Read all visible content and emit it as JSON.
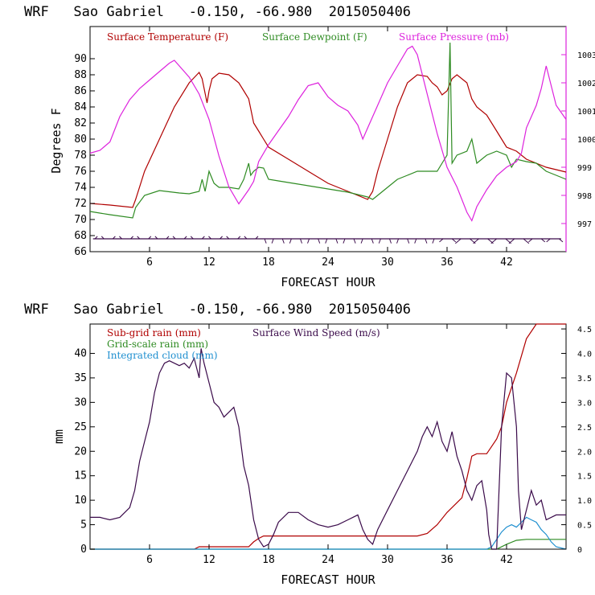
{
  "chart_data": [
    {
      "type": "line",
      "title": "WRF   Sao Gabriel   -0.150, -66.980  2015050406",
      "xlabel": "FORECAST HOUR",
      "ylabel": "Degrees F",
      "xlim": [
        0,
        48
      ],
      "ylim": [
        66,
        94
      ],
      "y2lim": [
        996,
        1004
      ],
      "x_ticks": [
        6,
        12,
        18,
        24,
        30,
        36,
        42
      ],
      "y_ticks": [
        66,
        68,
        70,
        72,
        74,
        76,
        78,
        80,
        82,
        84,
        86,
        88,
        90
      ],
      "y2_ticks": [
        997,
        998,
        999,
        1000,
        1001,
        1002,
        1003
      ],
      "series": [
        {
          "name": "Surface Temperature (F)",
          "color": "#b00000",
          "axis": "left",
          "x": [
            0,
            2,
            4.3,
            4.6,
            5.5,
            7,
            8.5,
            10,
            11,
            11.3,
            11.8,
            12,
            12.3,
            13,
            14,
            15,
            15.5,
            16,
            16.5,
            17,
            17.5,
            18,
            20,
            22,
            24,
            26,
            28,
            28.5,
            29,
            30,
            31,
            32,
            33,
            34,
            34.5,
            35,
            35.5,
            36,
            36.5,
            37,
            38,
            38.5,
            39,
            40,
            41,
            42,
            43,
            44,
            45,
            46,
            47,
            48
          ],
          "y": [
            72,
            71.8,
            71.5,
            72.5,
            76,
            80,
            84,
            87,
            88.3,
            87.5,
            84.5,
            86,
            87.5,
            88.2,
            88,
            87,
            86,
            85,
            82,
            81,
            80,
            79,
            77.5,
            76,
            74.5,
            73.5,
            72.5,
            73.5,
            76,
            80,
            84,
            87,
            88,
            87.8,
            87,
            86.5,
            85.5,
            86,
            87.5,
            88,
            87,
            85,
            84,
            83,
            81,
            79,
            78.5,
            77.5,
            77,
            76.5,
            76.2,
            75.9
          ]
        },
        {
          "name": "Surface Dewpoint (F)",
          "color": "#2e8b22",
          "axis": "left",
          "x": [
            0,
            2,
            4.3,
            4.6,
            5.5,
            7,
            9,
            10,
            11,
            11.3,
            11.6,
            12,
            12.5,
            13,
            14,
            15,
            15.5,
            16,
            16.2,
            16.5,
            17,
            17.5,
            18,
            19,
            20,
            22,
            24,
            26,
            28,
            28.5,
            29,
            30,
            31,
            32,
            33,
            34,
            35,
            35.5,
            36,
            36.3,
            36.5,
            37,
            38,
            38.5,
            39,
            40,
            41,
            42,
            42.5,
            43,
            44,
            45,
            46,
            47,
            48
          ],
          "y": [
            71,
            70.6,
            70.2,
            71.5,
            73,
            73.6,
            73.3,
            73.2,
            73.5,
            75,
            73.5,
            76,
            74.5,
            74,
            74,
            73.8,
            75,
            77,
            75.5,
            76,
            76.5,
            76.4,
            75,
            74.8,
            74.6,
            74.2,
            73.8,
            73.4,
            72.8,
            72.5,
            73,
            74,
            75,
            75.5,
            76,
            76,
            76,
            77,
            78,
            92,
            77,
            78,
            78.5,
            80,
            77,
            78,
            78.5,
            78,
            76.5,
            77.5,
            77.2,
            77,
            76,
            75.5,
            75
          ]
        },
        {
          "name": "Surface Pressure (mb)",
          "color": "#dd22dd",
          "axis": "right",
          "x": [
            0,
            1,
            2,
            3,
            4,
            5,
            6,
            7,
            8,
            8.5,
            9,
            10,
            11,
            12,
            13,
            14,
            15,
            16,
            16.5,
            17,
            18,
            19,
            20,
            21,
            22,
            23,
            24,
            25,
            26,
            27,
            27.5,
            28,
            29,
            30,
            31,
            32,
            32.5,
            33,
            34,
            35,
            36,
            37,
            38,
            38.5,
            39,
            40,
            41,
            42,
            43,
            43.5,
            44,
            45,
            45.5,
            46,
            47,
            48
          ],
          "y": [
            999.5,
            999.6,
            999.9,
            1000.8,
            1001.4,
            1001.8,
            1002.1,
            1002.4,
            1002.7,
            1002.8,
            1002.6,
            1002.2,
            1001.6,
            1000.7,
            999.4,
            998.3,
            997.7,
            998.2,
            998.5,
            999.2,
            999.8,
            1000.3,
            1000.8,
            1001.4,
            1001.9,
            1002.0,
            1001.5,
            1001.2,
            1001.0,
            1000.5,
            1000.0,
            1000.4,
            1001.2,
            1002.0,
            1002.6,
            1003.2,
            1003.3,
            1003.0,
            1001.6,
            1000.2,
            999.0,
            998.3,
            997.4,
            997.1,
            997.6,
            998.2,
            998.7,
            999.0,
            999.2,
            999.5,
            1000.4,
            1001.2,
            1001.8,
            1002.6,
            1001.2,
            1000.7
          ]
        }
      ],
      "wind_barbs_row_y": 67.6
    },
    {
      "type": "line",
      "title": "WRF   Sao Gabriel   -0.150, -66.980  2015050406",
      "xlabel": "FORECAST HOUR",
      "ylabel": "mm",
      "xlim": [
        0,
        48
      ],
      "ylim": [
        0,
        46
      ],
      "y2lim": [
        0,
        4.6
      ],
      "x_ticks": [
        6,
        12,
        18,
        24,
        30,
        36,
        42
      ],
      "y_ticks": [
        0,
        5,
        10,
        15,
        20,
        25,
        30,
        35,
        40
      ],
      "y2_ticks": [
        0,
        0.5,
        1.0,
        1.5,
        2.0,
        2.5,
        3.0,
        3.5,
        4.0,
        4.5
      ],
      "y2_tick_labels": [
        "0",
        "0.5",
        "1.0",
        "1.5",
        "2.0",
        "2.5",
        "3.0",
        "3.5",
        "4.0",
        "4.5"
      ],
      "series": [
        {
          "name": "Sub-grid rain (mm)",
          "color": "#b00000",
          "axis": "left",
          "x": [
            0,
            10.5,
            11,
            16,
            16.5,
            17,
            17.5,
            33,
            34,
            35,
            36,
            37,
            37.5,
            38,
            38.5,
            39,
            40,
            40.5,
            41,
            41.5,
            42,
            43,
            44,
            45,
            46,
            47,
            48
          ],
          "y": [
            0,
            0,
            0.5,
            0.5,
            1.5,
            2.2,
            2.7,
            2.7,
            3.2,
            5,
            7.5,
            9.5,
            10.5,
            14.5,
            19,
            19.5,
            19.5,
            21,
            22.5,
            25,
            30,
            36,
            43,
            46,
            46,
            46,
            46
          ]
        },
        {
          "name": "Grid-scale rain (mm)",
          "color": "#2e8b22",
          "axis": "left",
          "x": [
            0,
            41,
            42,
            43,
            44,
            48
          ],
          "y": [
            0,
            0,
            1.0,
            1.8,
            2.0,
            2.0
          ]
        },
        {
          "name": "Integrated cloud (mm)",
          "color": "#2090d0",
          "axis": "left",
          "x": [
            0,
            40,
            40.5,
            41,
            41.5,
            42,
            42.5,
            43,
            43.5,
            44,
            44.5,
            45,
            45.5,
            46,
            46.5,
            47,
            48
          ],
          "y": [
            0,
            0,
            0.5,
            2,
            3.5,
            4.5,
            5,
            4.5,
            5.5,
            6.5,
            6,
            5.5,
            4,
            3,
            1.5,
            0.5,
            0
          ]
        },
        {
          "name": "Surface Wind Speed (m/s)",
          "color": "#3a0a4a",
          "axis": "right",
          "x": [
            0,
            1,
            2,
            3,
            4,
            4.5,
            5,
            5.5,
            6,
            6.5,
            7,
            7.5,
            8,
            8.5,
            9,
            9.5,
            10,
            10.5,
            11,
            11.2,
            11.5,
            12,
            12.5,
            13,
            13.5,
            14,
            14.5,
            15,
            15.5,
            16,
            16.5,
            17,
            17.5,
            18,
            18.5,
            19,
            20,
            21,
            22,
            23,
            24,
            25,
            26,
            27,
            27.5,
            28,
            28.5,
            29,
            30,
            31,
            32,
            33,
            33.5,
            34,
            34.5,
            35,
            35.5,
            36,
            36.5,
            37,
            37.5,
            38,
            38.5,
            39,
            39.5,
            40,
            40.2,
            40.5,
            41,
            41.5,
            42,
            42.5,
            43,
            43.2,
            43.5,
            44,
            44.5,
            45,
            45.5,
            46,
            47,
            48
          ],
          "y": [
            0.65,
            0.65,
            0.6,
            0.65,
            0.85,
            1.2,
            1.8,
            2.2,
            2.6,
            3.2,
            3.6,
            3.8,
            3.85,
            3.8,
            3.75,
            3.8,
            3.7,
            3.9,
            3.5,
            4.1,
            3.8,
            3.4,
            3.0,
            2.9,
            2.7,
            2.8,
            2.9,
            2.5,
            1.7,
            1.3,
            0.6,
            0.2,
            0.05,
            0.1,
            0.3,
            0.55,
            0.75,
            0.75,
            0.6,
            0.5,
            0.45,
            0.5,
            0.6,
            0.7,
            0.4,
            0.2,
            0.1,
            0.4,
            0.8,
            1.2,
            1.6,
            2.0,
            2.3,
            2.5,
            2.3,
            2.6,
            2.2,
            2.0,
            2.4,
            1.9,
            1.6,
            1.2,
            1.0,
            1.3,
            1.4,
            0.8,
            0.3,
            0.0,
            0.0,
            2.5,
            3.6,
            3.5,
            2.5,
            1.2,
            0.4,
            0.8,
            1.2,
            0.9,
            1.0,
            0.6,
            0.7,
            0.7
          ]
        }
      ]
    }
  ]
}
